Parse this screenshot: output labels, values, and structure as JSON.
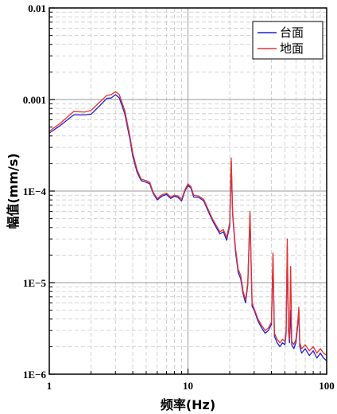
{
  "chart_data": {
    "type": "line",
    "xlabel": "频率(Hz)",
    "ylabel": "幅值(mm/s)",
    "x_scale": "log",
    "y_scale": "log",
    "xlim": [
      1,
      100
    ],
    "ylim": [
      1e-06,
      0.01
    ],
    "x_ticks": [
      {
        "value": 1,
        "label": "1"
      },
      {
        "value": 10,
        "label": "10"
      },
      {
        "value": 100,
        "label": "100"
      }
    ],
    "y_ticks": [
      {
        "value": 0.01,
        "label": "0.01"
      },
      {
        "value": 0.001,
        "label": "0.001"
      },
      {
        "value": 0.0001,
        "label": "1E−4"
      },
      {
        "value": 1e-05,
        "label": "1E−5"
      },
      {
        "value": 1e-06,
        "label": "1E−6"
      }
    ],
    "grid": true,
    "legend_position": "top-right",
    "series": [
      {
        "name": "台面",
        "color": "#1f1fd6",
        "points": [
          [
            1,
            0.00043
          ],
          [
            1.2,
            0.00052
          ],
          [
            1.5,
            0.00068
          ],
          [
            1.8,
            0.00068
          ],
          [
            2.0,
            0.00069
          ],
          [
            2.3,
            0.00085
          ],
          [
            2.6,
            0.00103
          ],
          [
            2.8,
            0.00104
          ],
          [
            3.0,
            0.00113
          ],
          [
            3.2,
            0.00104
          ],
          [
            3.5,
            0.0007
          ],
          [
            3.8,
            0.00038
          ],
          [
            4.0,
            0.00024
          ],
          [
            4.3,
            0.00016
          ],
          [
            4.6,
            0.00013
          ],
          [
            5.0,
            0.000125
          ],
          [
            5.3,
            0.00012
          ],
          [
            5.6,
            9.5e-05
          ],
          [
            6.0,
            8e-05
          ],
          [
            6.5,
            8.8e-05
          ],
          [
            7.0,
            9.2e-05
          ],
          [
            7.5,
            8.3e-05
          ],
          [
            8.0,
            8.8e-05
          ],
          [
            8.5,
            8.5e-05
          ],
          [
            9.0,
            7.8e-05
          ],
          [
            9.5,
            0.0001
          ],
          [
            10.0,
            0.000115
          ],
          [
            10.5,
            0.000108
          ],
          [
            11.0,
            8.6e-05
          ],
          [
            12.0,
            8.5e-05
          ],
          [
            13.0,
            7.8e-05
          ],
          [
            14.0,
            6e-05
          ],
          [
            15.0,
            4.8e-05
          ],
          [
            16.0,
            4e-05
          ],
          [
            17.0,
            3.4e-05
          ],
          [
            18.0,
            3.6e-05
          ],
          [
            19.0,
            2.9e-05
          ],
          [
            20.0,
            4.2e-05
          ],
          [
            20.5,
            0.00021
          ],
          [
            21.0,
            5.5e-05
          ],
          [
            22.0,
            2.2e-05
          ],
          [
            23.0,
            1.3e-05
          ],
          [
            24.0,
            1.1e-05
          ],
          [
            25.0,
            7.5e-06
          ],
          [
            26.0,
            6e-06
          ],
          [
            27.0,
            9.5e-06
          ],
          [
            28.0,
            5.5e-05
          ],
          [
            29.0,
            5.5e-06
          ],
          [
            30.0,
            5e-06
          ],
          [
            32.0,
            3.8e-06
          ],
          [
            34.0,
            3.2e-06
          ],
          [
            36.0,
            2.8e-06
          ],
          [
            38.0,
            3e-06
          ],
          [
            40.0,
            3.5e-06
          ],
          [
            41.0,
            1.9e-05
          ],
          [
            42.0,
            2.6e-06
          ],
          [
            44.0,
            2.2e-06
          ],
          [
            46.0,
            2e-06
          ],
          [
            48.0,
            2.2e-06
          ],
          [
            50.0,
            2.1e-06
          ],
          [
            51.0,
            2.8e-06
          ],
          [
            52.0,
            2.5e-05
          ],
          [
            53.0,
            3e-06
          ],
          [
            54.0,
            2.2e-06
          ],
          [
            55.0,
            5e-06
          ],
          [
            56.0,
            2.1e-06
          ],
          [
            58.0,
            1.9e-06
          ],
          [
            60.0,
            2.2e-06
          ],
          [
            62.0,
            3.5e-06
          ],
          [
            63.0,
            5e-06
          ],
          [
            64.0,
            2e-06
          ],
          [
            66.0,
            1.7e-06
          ],
          [
            70.0,
            1.9e-06
          ],
          [
            75.0,
            1.6e-06
          ],
          [
            80.0,
            1.8e-06
          ],
          [
            85.0,
            1.5e-06
          ],
          [
            90.0,
            1.7e-06
          ],
          [
            95.0,
            1.5e-06
          ],
          [
            100.0,
            1.4e-06
          ]
        ]
      },
      {
        "name": "地面",
        "color": "#e8302a",
        "points": [
          [
            1,
            0.00045
          ],
          [
            1.2,
            0.00055
          ],
          [
            1.5,
            0.00074
          ],
          [
            1.8,
            0.00073
          ],
          [
            2.0,
            0.00076
          ],
          [
            2.3,
            0.00093
          ],
          [
            2.6,
            0.00111
          ],
          [
            2.8,
            0.00113
          ],
          [
            3.0,
            0.00122
          ],
          [
            3.2,
            0.00113
          ],
          [
            3.5,
            0.00076
          ],
          [
            3.8,
            0.00041
          ],
          [
            4.0,
            0.00026
          ],
          [
            4.3,
            0.00017
          ],
          [
            4.6,
            0.000135
          ],
          [
            5.0,
            0.00013
          ],
          [
            5.3,
            0.000125
          ],
          [
            5.6,
            9.8e-05
          ],
          [
            6.0,
            8.3e-05
          ],
          [
            6.5,
            9.1e-05
          ],
          [
            7.0,
            9.5e-05
          ],
          [
            7.5,
            8.6e-05
          ],
          [
            8.0,
            9e-05
          ],
          [
            8.5,
            8.8e-05
          ],
          [
            9.0,
            8.2e-05
          ],
          [
            9.5,
            0.000103
          ],
          [
            10.0,
            0.00012
          ],
          [
            10.5,
            0.000112
          ],
          [
            11.0,
            9e-05
          ],
          [
            12.0,
            8.8e-05
          ],
          [
            13.0,
            8.1e-05
          ],
          [
            14.0,
            6.3e-05
          ],
          [
            15.0,
            5e-05
          ],
          [
            16.0,
            4.2e-05
          ],
          [
            17.0,
            3.6e-05
          ],
          [
            18.0,
            3.8e-05
          ],
          [
            19.0,
            3.1e-05
          ],
          [
            20.0,
            4.5e-05
          ],
          [
            20.5,
            0.00023
          ],
          [
            21.0,
            5.8e-05
          ],
          [
            22.0,
            2.4e-05
          ],
          [
            23.0,
            1.4e-05
          ],
          [
            24.0,
            1.2e-05
          ],
          [
            25.0,
            8e-06
          ],
          [
            26.0,
            6.5e-06
          ],
          [
            27.0,
            1e-05
          ],
          [
            28.0,
            6e-05
          ],
          [
            29.0,
            6e-06
          ],
          [
            30.0,
            5.2e-06
          ],
          [
            32.0,
            4e-06
          ],
          [
            34.0,
            3.4e-06
          ],
          [
            36.0,
            3e-06
          ],
          [
            38.0,
            3.2e-06
          ],
          [
            40.0,
            3.7e-06
          ],
          [
            41.0,
            2.1e-05
          ],
          [
            42.0,
            2.8e-06
          ],
          [
            44.0,
            2.4e-06
          ],
          [
            46.0,
            2.2e-06
          ],
          [
            48.0,
            2.4e-06
          ],
          [
            50.0,
            2.3e-06
          ],
          [
            51.0,
            3e-06
          ],
          [
            52.0,
            3e-05
          ],
          [
            53.0,
            3.2e-06
          ],
          [
            54.0,
            2.4e-06
          ],
          [
            55.0,
            1.5e-05
          ],
          [
            56.0,
            2.3e-06
          ],
          [
            58.0,
            2.1e-06
          ],
          [
            60.0,
            2.4e-06
          ],
          [
            62.0,
            3.8e-06
          ],
          [
            63.0,
            5.4e-06
          ],
          [
            64.0,
            2.2e-06
          ],
          [
            66.0,
            1.9e-06
          ],
          [
            70.0,
            2.1e-06
          ],
          [
            75.0,
            1.8e-06
          ],
          [
            80.0,
            2e-06
          ],
          [
            85.0,
            1.7e-06
          ],
          [
            90.0,
            1.9e-06
          ],
          [
            95.0,
            1.7e-06
          ],
          [
            100.0,
            1.6e-06
          ]
        ]
      }
    ]
  }
}
